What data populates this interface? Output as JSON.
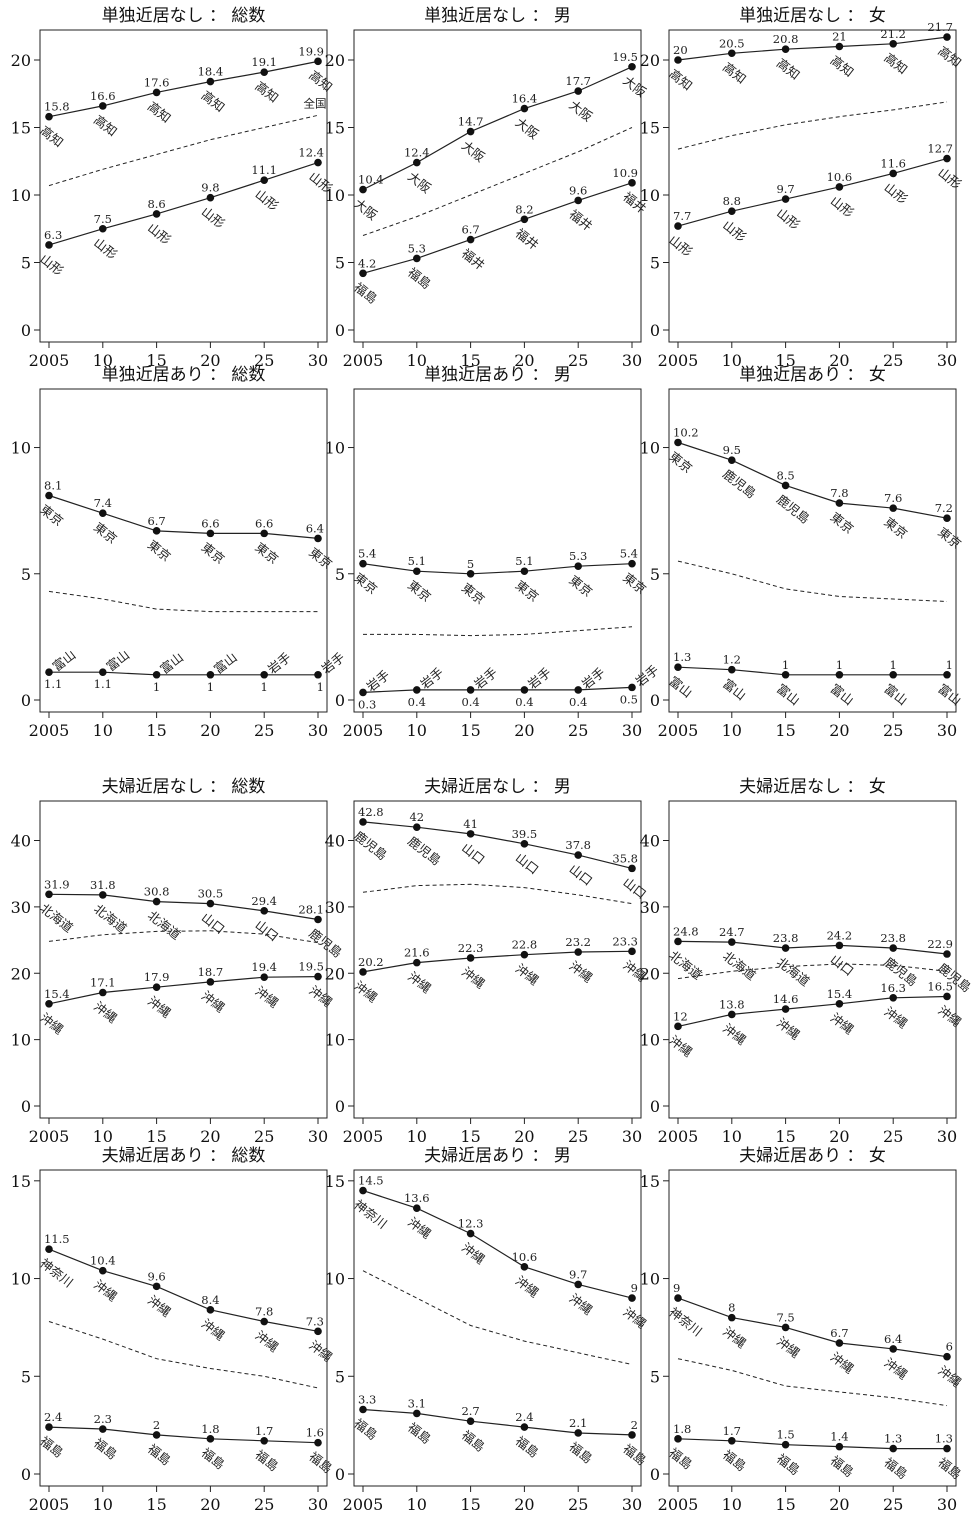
{
  "colors": {
    "ink": "#222222",
    "background": "#ffffff"
  },
  "chart_data": [
    {
      "type": "line",
      "title": "単独近居なし ： 総数",
      "x": [
        "2005",
        "10",
        "15",
        "20",
        "25",
        "30"
      ],
      "ylim": [
        0,
        22
      ],
      "yticks": [
        0,
        5,
        10,
        15,
        20
      ],
      "series": [
        {
          "role": "high",
          "values": [
            15.8,
            16.6,
            17.6,
            18.4,
            19.1,
            19.9
          ],
          "labels": [
            "15.8",
            "16.6",
            "17.6",
            "18.4",
            "19.1",
            "19.9"
          ],
          "prefs": [
            "高知",
            "高知",
            "高知",
            "高知",
            "高知",
            "高知"
          ]
        },
        {
          "role": "low",
          "values": [
            6.3,
            7.5,
            8.6,
            9.8,
            11.1,
            12.4
          ],
          "labels": [
            "6.3",
            "7.5",
            "8.6",
            "9.8",
            "11.1",
            "12.4"
          ],
          "prefs": [
            "山形",
            "山形",
            "山形",
            "山形",
            "山形",
            "山形"
          ]
        },
        {
          "role": "national",
          "name": "全国",
          "values": [
            10.7,
            11.9,
            13.0,
            14.1,
            15.0,
            15.9
          ]
        }
      ]
    },
    {
      "type": "line",
      "title": "単独近居なし ： 男",
      "x": [
        "2005",
        "10",
        "15",
        "20",
        "25",
        "30"
      ],
      "ylim": [
        0,
        22
      ],
      "yticks": [
        0,
        5,
        10,
        15,
        20
      ],
      "series": [
        {
          "role": "high",
          "values": [
            10.4,
            12.4,
            14.7,
            16.4,
            17.7,
            19.5
          ],
          "labels": [
            "10.4",
            "12.4",
            "14.7",
            "16.4",
            "17.7",
            "19.5"
          ],
          "prefs": [
            "大阪",
            "大阪",
            "大阪",
            "大阪",
            "大阪",
            "大阪"
          ]
        },
        {
          "role": "low",
          "values": [
            4.2,
            5.3,
            6.7,
            8.2,
            9.6,
            10.9
          ],
          "labels": [
            "4.2",
            "5.3",
            "6.7",
            "8.2",
            "9.6",
            "10.9"
          ],
          "prefs": [
            "福島",
            "福島",
            "福井",
            "福井",
            "福井",
            "福井"
          ]
        },
        {
          "role": "national",
          "values": [
            7.0,
            8.4,
            10.0,
            11.6,
            13.2,
            15.0
          ]
        }
      ]
    },
    {
      "type": "line",
      "title": "単独近居なし ： 女",
      "x": [
        "2005",
        "10",
        "15",
        "20",
        "25",
        "30"
      ],
      "ylim": [
        0,
        22
      ],
      "yticks": [
        0,
        5,
        10,
        15,
        20
      ],
      "series": [
        {
          "role": "high",
          "values": [
            20,
            20.5,
            20.8,
            21,
            21.2,
            21.7
          ],
          "labels": [
            "20",
            "20.5",
            "20.8",
            "21",
            "21.2",
            "21.7"
          ],
          "prefs": [
            "高知",
            "高知",
            "高知",
            "高知",
            "高知",
            "高知"
          ]
        },
        {
          "role": "low",
          "values": [
            7.7,
            8.8,
            9.7,
            10.6,
            11.6,
            12.7
          ],
          "labels": [
            "7.7",
            "8.8",
            "9.7",
            "10.6",
            "11.6",
            "12.7"
          ],
          "prefs": [
            "山形",
            "山形",
            "山形",
            "山形",
            "山形",
            "山形"
          ]
        },
        {
          "role": "national",
          "values": [
            13.4,
            14.4,
            15.2,
            15.8,
            16.3,
            16.9
          ]
        }
      ]
    },
    {
      "type": "line",
      "title": "単独近居あり ： 総数",
      "x": [
        "2005",
        "10",
        "15",
        "20",
        "25",
        "30"
      ],
      "ylim": [
        0,
        12.2
      ],
      "yticks": [
        0,
        5,
        10
      ],
      "series": [
        {
          "role": "high",
          "values": [
            8.1,
            7.4,
            6.7,
            6.6,
            6.6,
            6.4
          ],
          "labels": [
            "8.1",
            "7.4",
            "6.7",
            "6.6",
            "6.6",
            "6.4"
          ],
          "prefs": [
            "東京",
            "東京",
            "東京",
            "東京",
            "東京",
            "東京"
          ]
        },
        {
          "role": "low",
          "values": [
            1.1,
            1.1,
            1,
            1,
            1,
            1
          ],
          "labels": [
            "1.1",
            "1.1",
            "1",
            "1",
            "1",
            "1"
          ],
          "prefs": [
            "富山",
            "富山",
            "富山",
            "富山",
            "岩手",
            "岩手"
          ]
        },
        {
          "role": "national",
          "values": [
            4.3,
            4.0,
            3.6,
            3.5,
            3.5,
            3.5
          ]
        }
      ]
    },
    {
      "type": "line",
      "title": "単独近居あり ： 男",
      "x": [
        "2005",
        "10",
        "15",
        "20",
        "25",
        "30"
      ],
      "ylim": [
        0,
        12.2
      ],
      "yticks": [
        0,
        5,
        10
      ],
      "series": [
        {
          "role": "high",
          "values": [
            5.4,
            5.1,
            5,
            5.1,
            5.3,
            5.4
          ],
          "labels": [
            "5.4",
            "5.1",
            "5",
            "5.1",
            "5.3",
            "5.4"
          ],
          "prefs": [
            "東京",
            "東京",
            "東京",
            "東京",
            "東京",
            "東京"
          ]
        },
        {
          "role": "low",
          "values": [
            0.3,
            0.4,
            0.4,
            0.4,
            0.4,
            0.5
          ],
          "labels": [
            "0.3",
            "0.4",
            "0.4",
            "0.4",
            "0.4",
            "0.5"
          ],
          "prefs": [
            "岩手",
            "岩手",
            "岩手",
            "岩手",
            "岩手",
            "岩手"
          ]
        },
        {
          "role": "national",
          "values": [
            2.6,
            2.6,
            2.55,
            2.6,
            2.75,
            2.9
          ]
        }
      ]
    },
    {
      "type": "line",
      "title": "単独近居あり ： 女",
      "x": [
        "2005",
        "10",
        "15",
        "20",
        "25",
        "30"
      ],
      "ylim": [
        0,
        12.2
      ],
      "yticks": [
        0,
        5,
        10
      ],
      "series": [
        {
          "role": "high",
          "values": [
            10.2,
            9.5,
            8.5,
            7.8,
            7.6,
            7.2
          ],
          "labels": [
            "10.2",
            "9.5",
            "8.5",
            "7.8",
            "7.6",
            "7.2"
          ],
          "prefs": [
            "東京",
            "鹿児島",
            "鹿児島",
            "東京",
            "東京",
            "東京"
          ]
        },
        {
          "role": "low",
          "values": [
            1.3,
            1.2,
            1,
            1,
            1,
            1
          ],
          "labels": [
            "1.3",
            "1.2",
            "1",
            "1",
            "1",
            "1"
          ],
          "prefs": [
            "富山",
            "富山",
            "富山",
            "富山",
            "富山",
            "富山"
          ]
        },
        {
          "role": "national",
          "values": [
            5.5,
            5.0,
            4.4,
            4.1,
            4.0,
            3.9
          ]
        }
      ]
    },
    {
      "type": "line",
      "title": "夫婦近居なし ： 総数",
      "x": [
        "2005",
        "10",
        "15",
        "20",
        "25",
        "30"
      ],
      "ylim": [
        0,
        45.5
      ],
      "yticks": [
        0,
        10,
        20,
        30,
        40
      ],
      "series": [
        {
          "role": "high",
          "values": [
            31.9,
            31.8,
            30.8,
            30.5,
            29.4,
            28.1
          ],
          "labels": [
            "31.9",
            "31.8",
            "30.8",
            "30.5",
            "29.4",
            "28.1"
          ],
          "prefs": [
            "北海道",
            "北海道",
            "北海道",
            "山口",
            "山口",
            "鹿児島"
          ]
        },
        {
          "role": "low",
          "values": [
            15.4,
            17.1,
            17.9,
            18.7,
            19.4,
            19.5
          ],
          "labels": [
            "15.4",
            "17.1",
            "17.9",
            "18.7",
            "19.4",
            "19.5"
          ],
          "prefs": [
            "沖縄",
            "沖縄",
            "沖縄",
            "沖縄",
            "沖縄",
            "沖縄"
          ]
        },
        {
          "role": "national",
          "values": [
            24.8,
            25.8,
            26.3,
            26.4,
            25.9,
            24.6
          ]
        }
      ]
    },
    {
      "type": "line",
      "title": "夫婦近居なし ： 男",
      "x": [
        "2005",
        "10",
        "15",
        "20",
        "25",
        "30"
      ],
      "ylim": [
        0,
        45.5
      ],
      "yticks": [
        0,
        10,
        20,
        30,
        40
      ],
      "series": [
        {
          "role": "high",
          "values": [
            42.8,
            42,
            41,
            39.5,
            37.8,
            35.8
          ],
          "labels": [
            "42.8",
            "42",
            "41",
            "39.5",
            "37.8",
            "35.8"
          ],
          "prefs": [
            "鹿児島",
            "鹿児島",
            "山口",
            "山口",
            "山口",
            "山口"
          ]
        },
        {
          "role": "low",
          "values": [
            20.2,
            21.6,
            22.3,
            22.8,
            23.2,
            23.3
          ],
          "labels": [
            "20.2",
            "21.6",
            "22.3",
            "22.8",
            "23.2",
            "23.3"
          ],
          "prefs": [
            "沖縄",
            "沖縄",
            "沖縄",
            "沖縄",
            "沖縄",
            "沖縄"
          ]
        },
        {
          "role": "national",
          "values": [
            32.2,
            33.2,
            33.4,
            32.9,
            31.8,
            30.5
          ]
        }
      ]
    },
    {
      "type": "line",
      "title": "夫婦近居なし ： 女",
      "x": [
        "2005",
        "10",
        "15",
        "20",
        "25",
        "30"
      ],
      "ylim": [
        0,
        45.5
      ],
      "yticks": [
        0,
        10,
        20,
        30,
        40
      ],
      "series": [
        {
          "role": "high",
          "values": [
            24.8,
            24.7,
            23.8,
            24.2,
            23.8,
            22.9
          ],
          "labels": [
            "24.8",
            "24.7",
            "23.8",
            "24.2",
            "23.8",
            "22.9"
          ],
          "prefs": [
            "北海道",
            "北海道",
            "北海道",
            "山口",
            "鹿児島",
            "鹿児島"
          ]
        },
        {
          "role": "low",
          "values": [
            12,
            13.8,
            14.6,
            15.4,
            16.3,
            16.5
          ],
          "labels": [
            "12",
            "13.8",
            "14.6",
            "15.4",
            "16.3",
            "16.5"
          ],
          "prefs": [
            "沖縄",
            "沖縄",
            "沖縄",
            "沖縄",
            "沖縄",
            "沖縄"
          ]
        },
        {
          "role": "national",
          "values": [
            19.2,
            20.3,
            21.0,
            21.4,
            21.2,
            20.3
          ]
        }
      ]
    },
    {
      "type": "line",
      "title": "夫婦近居あり ： 総数",
      "x": [
        "2005",
        "10",
        "15",
        "20",
        "25",
        "30"
      ],
      "ylim": [
        0,
        15.4
      ],
      "yticks": [
        0,
        5,
        10,
        15
      ],
      "series": [
        {
          "role": "high",
          "values": [
            11.5,
            10.4,
            9.6,
            8.4,
            7.8,
            7.3
          ],
          "labels": [
            "11.5",
            "10.4",
            "9.6",
            "8.4",
            "7.8",
            "7.3"
          ],
          "prefs": [
            "神奈川",
            "沖縄",
            "沖縄",
            "沖縄",
            "沖縄",
            "沖縄"
          ]
        },
        {
          "role": "low",
          "values": [
            2.4,
            2.3,
            2,
            1.8,
            1.7,
            1.6
          ],
          "labels": [
            "2.4",
            "2.3",
            "2",
            "1.8",
            "1.7",
            "1.6"
          ],
          "prefs": [
            "福島",
            "福島",
            "福島",
            "福島",
            "福島",
            "福島"
          ]
        },
        {
          "role": "national",
          "values": [
            7.8,
            6.9,
            5.9,
            5.4,
            5.0,
            4.4
          ]
        }
      ]
    },
    {
      "type": "line",
      "title": "夫婦近居あり ： 男",
      "x": [
        "2005",
        "10",
        "15",
        "20",
        "25",
        "30"
      ],
      "ylim": [
        0,
        15.4
      ],
      "yticks": [
        0,
        5,
        10,
        15
      ],
      "series": [
        {
          "role": "high",
          "values": [
            14.5,
            13.6,
            12.3,
            10.6,
            9.7,
            9
          ],
          "labels": [
            "14.5",
            "13.6",
            "12.3",
            "10.6",
            "9.7",
            "9"
          ],
          "prefs": [
            "神奈川",
            "沖縄",
            "沖縄",
            "沖縄",
            "沖縄",
            "沖縄"
          ]
        },
        {
          "role": "low",
          "values": [
            3.3,
            3.1,
            2.7,
            2.4,
            2.1,
            2
          ],
          "labels": [
            "3.3",
            "3.1",
            "2.7",
            "2.4",
            "2.1",
            "2"
          ],
          "prefs": [
            "福島",
            "福島",
            "福島",
            "福島",
            "福島",
            "福島"
          ]
        },
        {
          "role": "national",
          "values": [
            10.4,
            9.0,
            7.6,
            6.8,
            6.2,
            5.6
          ]
        }
      ]
    },
    {
      "type": "line",
      "title": "夫婦近居あり ： 女",
      "x": [
        "2005",
        "10",
        "15",
        "20",
        "25",
        "30"
      ],
      "ylim": [
        0,
        15.4
      ],
      "yticks": [
        0,
        5,
        10,
        15
      ],
      "series": [
        {
          "role": "high",
          "values": [
            9,
            8,
            7.5,
            6.7,
            6.4,
            6
          ],
          "labels": [
            "9",
            "8",
            "7.5",
            "6.7",
            "6.4",
            "6"
          ],
          "prefs": [
            "神奈川",
            "沖縄",
            "沖縄",
            "沖縄",
            "沖縄",
            "沖縄"
          ]
        },
        {
          "role": "low",
          "values": [
            1.8,
            1.7,
            1.5,
            1.4,
            1.3,
            1.3
          ],
          "labels": [
            "1.8",
            "1.7",
            "1.5",
            "1.4",
            "1.3",
            "1.3"
          ],
          "prefs": [
            "福島",
            "福島",
            "福島",
            "福島",
            "福島",
            "福島"
          ]
        },
        {
          "role": "national",
          "values": [
            5.9,
            5.3,
            4.5,
            4.2,
            3.9,
            3.5
          ]
        }
      ]
    }
  ]
}
